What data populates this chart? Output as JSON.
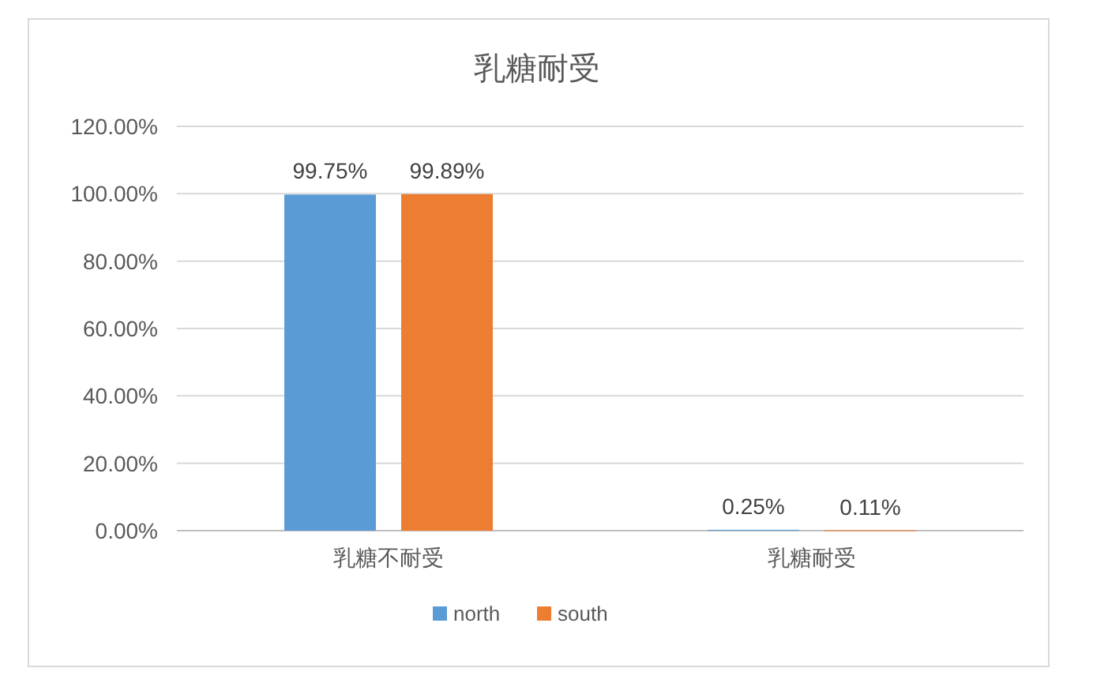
{
  "chart_data": {
    "type": "bar",
    "title": "乳糖耐受",
    "categories": [
      "乳糖不耐受",
      "乳糖耐受"
    ],
    "series": [
      {
        "name": "north",
        "color": "#5b9bd5",
        "values": [
          99.75,
          0.25
        ],
        "value_labels": [
          "99.75%",
          "0.25%"
        ]
      },
      {
        "name": "south",
        "color": "#ed7d31",
        "values": [
          99.89,
          0.11
        ],
        "value_labels": [
          "99.89%",
          "0.11%"
        ]
      }
    ],
    "ylim": [
      0,
      120
    ],
    "yticks": [
      {
        "value": 0,
        "label": "0.00%"
      },
      {
        "value": 20,
        "label": "20.00%"
      },
      {
        "value": 40,
        "label": "40.00%"
      },
      {
        "value": 60,
        "label": "60.00%"
      },
      {
        "value": 80,
        "label": "80.00%"
      },
      {
        "value": 100,
        "label": "100.00%"
      },
      {
        "value": 120,
        "label": "120.00%"
      }
    ],
    "grid": "y",
    "legend": "bottom"
  }
}
